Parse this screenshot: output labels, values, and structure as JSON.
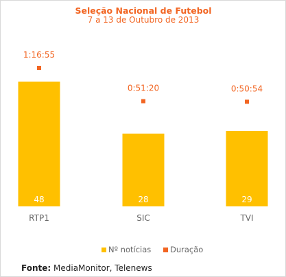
{
  "chart_data": {
    "type": "bar",
    "title": "Seleção Nacional de Futebol",
    "subtitle": "7 a 13 de Outubro de 2013",
    "categories": [
      "RTP1",
      "SIC",
      "TVI"
    ],
    "series": [
      {
        "name": "Nº notícias",
        "kind": "bar",
        "values": [
          48,
          28,
          29
        ],
        "color": "#FFC000"
      },
      {
        "name": "Duração",
        "kind": "scatter",
        "values": [
          "1:16:55",
          "0:51:20",
          "0:50:54"
        ],
        "values_seconds": [
          4615,
          3080,
          3054
        ],
        "color": "#F26522"
      }
    ],
    "grid": false,
    "legend_position": "bottom",
    "title_color": "#F26522",
    "label_color": "#F26522"
  },
  "source": {
    "label": "Fonte:",
    "text": "MediaMonitor, Telenews"
  }
}
